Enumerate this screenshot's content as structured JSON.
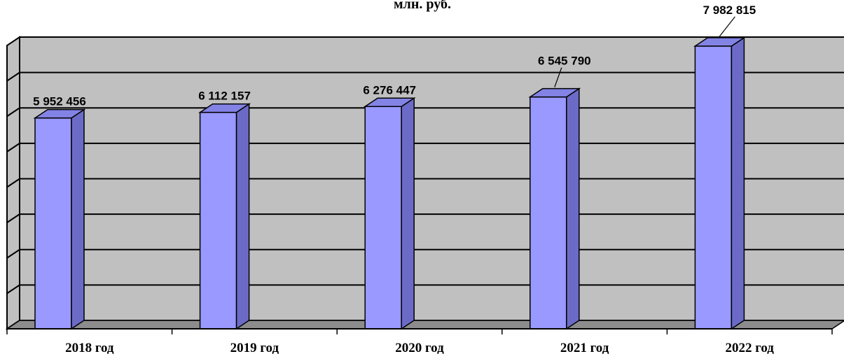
{
  "chart_data": {
    "type": "bar",
    "title": "млн. руб.",
    "categories": [
      "2018 год",
      "2019 год",
      "2020 год",
      "2021 год",
      "2022 год"
    ],
    "values": [
      5952456,
      6112157,
      6276447,
      6545790,
      7982815
    ],
    "value_labels": [
      "5 952 456",
      "6 112 157",
      "6 276 447",
      "6 545 790",
      "7 982 815"
    ],
    "ylim": [
      0,
      8000000
    ],
    "grid": true,
    "legend": "none",
    "colors": {
      "bar_front": "#9999ff",
      "bar_side": "#6b6bc7",
      "bar_top": "#8383e6",
      "wall": "#c0c0c0",
      "floor": "#8c8c8c"
    }
  }
}
